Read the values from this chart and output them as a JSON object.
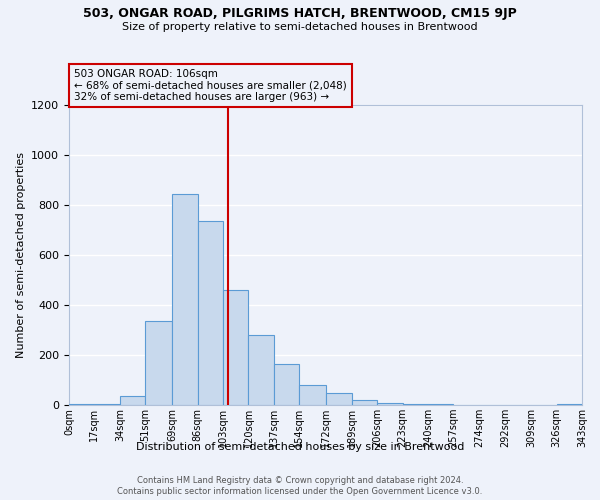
{
  "title": "503, ONGAR ROAD, PILGRIMS HATCH, BRENTWOOD, CM15 9JP",
  "subtitle": "Size of property relative to semi-detached houses in Brentwood",
  "xlabel": "Distribution of semi-detached houses by size in Brentwood",
  "ylabel": "Number of semi-detached properties",
  "bin_edges": [
    0,
    17,
    34,
    51,
    69,
    86,
    103,
    120,
    137,
    154,
    172,
    189,
    206,
    223,
    240,
    257,
    274,
    292,
    309,
    326,
    343
  ],
  "bin_counts": [
    5,
    5,
    37,
    335,
    845,
    735,
    460,
    280,
    165,
    80,
    47,
    20,
    8,
    5,
    3,
    2,
    1,
    1,
    1,
    5
  ],
  "bar_facecolor": "#c8d9ed",
  "bar_edgecolor": "#5b9bd5",
  "property_line_x": 106,
  "property_line_color": "#cc0000",
  "annotation_title": "503 ONGAR ROAD: 106sqm",
  "annotation_line1": "← 68% of semi-detached houses are smaller (2,048)",
  "annotation_line2": "32% of semi-detached houses are larger (963) →",
  "annotation_box_color": "#cc0000",
  "ylim": [
    0,
    1200
  ],
  "yticks": [
    0,
    200,
    400,
    600,
    800,
    1000,
    1200
  ],
  "tick_labels": [
    "0sqm",
    "17sqm",
    "34sqm",
    "51sqm",
    "69sqm",
    "86sqm",
    "103sqm",
    "120sqm",
    "137sqm",
    "154sqm",
    "172sqm",
    "189sqm",
    "206sqm",
    "223sqm",
    "240sqm",
    "257sqm",
    "274sqm",
    "292sqm",
    "309sqm",
    "326sqm",
    "343sqm"
  ],
  "bg_color": "#eef2fa",
  "grid_color": "#ffffff",
  "footer1": "Contains HM Land Registry data © Crown copyright and database right 2024.",
  "footer2": "Contains public sector information licensed under the Open Government Licence v3.0."
}
